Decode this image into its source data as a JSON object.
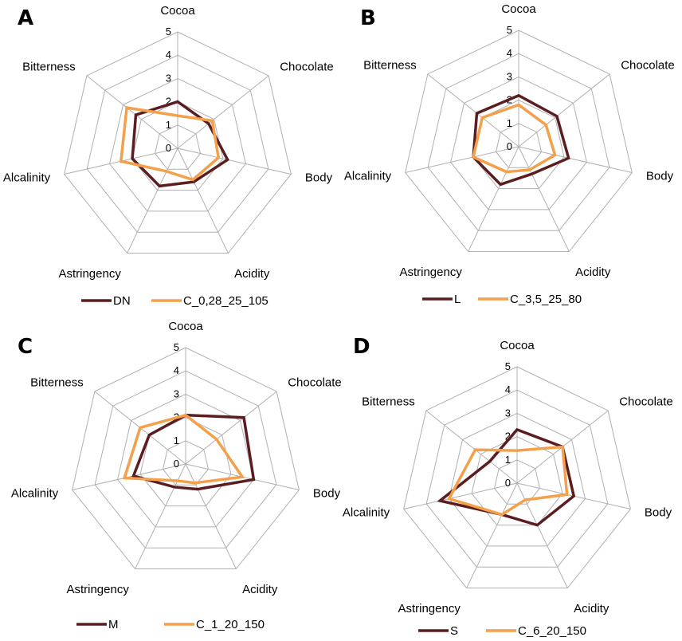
{
  "chart_data": [
    {
      "type": "radar",
      "panel": "A",
      "axes": [
        "Cocoa",
        "Chocolate",
        "Body",
        "Acidity",
        "Astringency",
        "Alcalinity",
        "Bitterness"
      ],
      "ticks": [
        "0",
        "1",
        "2",
        "3",
        "4",
        "5"
      ],
      "rlim": [
        0,
        5
      ],
      "grid": true,
      "legend_position": "bottom",
      "colors": {
        "series1": "#5a1e20",
        "series2": "#f4a04b"
      },
      "series": [
        {
          "name": "DN",
          "values": [
            2.0,
            1.7,
            2.2,
            1.6,
            1.8,
            2.0,
            2.3
          ]
        },
        {
          "name": "C_0,28_25_105",
          "values": [
            1.4,
            1.9,
            1.8,
            1.5,
            1.1,
            2.5,
            2.8
          ]
        }
      ]
    },
    {
      "type": "radar",
      "panel": "B",
      "axes": [
        "Cocoa",
        "Chocolate",
        "Body",
        "Acidity",
        "Astringency",
        "Alcalinity",
        "Bitterness"
      ],
      "ticks": [
        "0",
        "1",
        "2",
        "3",
        "4",
        "5"
      ],
      "rlim": [
        0,
        5
      ],
      "grid": true,
      "legend_position": "bottom",
      "colors": {
        "series1": "#5a1e20",
        "series2": "#f4a04b"
      },
      "series": [
        {
          "name": "L",
          "values": [
            2.2,
            2.1,
            2.2,
            1.3,
            1.8,
            2.0,
            2.3
          ]
        },
        {
          "name": "C_3,5_25_80",
          "values": [
            1.8,
            1.5,
            1.6,
            1.1,
            1.2,
            2.0,
            2.0
          ]
        }
      ]
    },
    {
      "type": "radar",
      "panel": "C",
      "axes": [
        "Cocoa",
        "Chocolate",
        "Body",
        "Acidity",
        "Astringency",
        "Alcalinity",
        "Bitterness"
      ],
      "ticks": [
        "0",
        "1",
        "2",
        "3",
        "4",
        "5"
      ],
      "rlim": [
        0,
        5
      ],
      "grid": true,
      "legend_position": "bottom",
      "colors": {
        "series1": "#5a1e20",
        "series2": "#f4a04b"
      },
      "series": [
        {
          "name": "M",
          "values": [
            2.1,
            3.2,
            3.0,
            1.2,
            1.1,
            2.3,
            2.0
          ]
        },
        {
          "name": "C_1_20_150",
          "values": [
            2.1,
            1.7,
            2.5,
            0.9,
            0.8,
            2.7,
            2.5
          ]
        }
      ]
    },
    {
      "type": "radar",
      "panel": "D",
      "axes": [
        "Cocoa",
        "Chocolate",
        "Body",
        "Acidity",
        "Astringency",
        "Alcalinity",
        "Bitterness"
      ],
      "ticks": [
        "0",
        "1",
        "2",
        "3",
        "4",
        "5"
      ],
      "rlim": [
        0,
        5
      ],
      "grid": true,
      "legend_position": "bottom",
      "colors": {
        "series1": "#5a1e20",
        "series2": "#f4a04b"
      },
      "series": [
        {
          "name": "S",
          "values": [
            2.3,
            2.5,
            2.5,
            2.0,
            1.5,
            3.4,
            1.5
          ]
        },
        {
          "name": "C_6_20_150",
          "values": [
            1.4,
            2.5,
            2.2,
            0.8,
            1.5,
            3.0,
            2.3
          ]
        }
      ]
    }
  ]
}
